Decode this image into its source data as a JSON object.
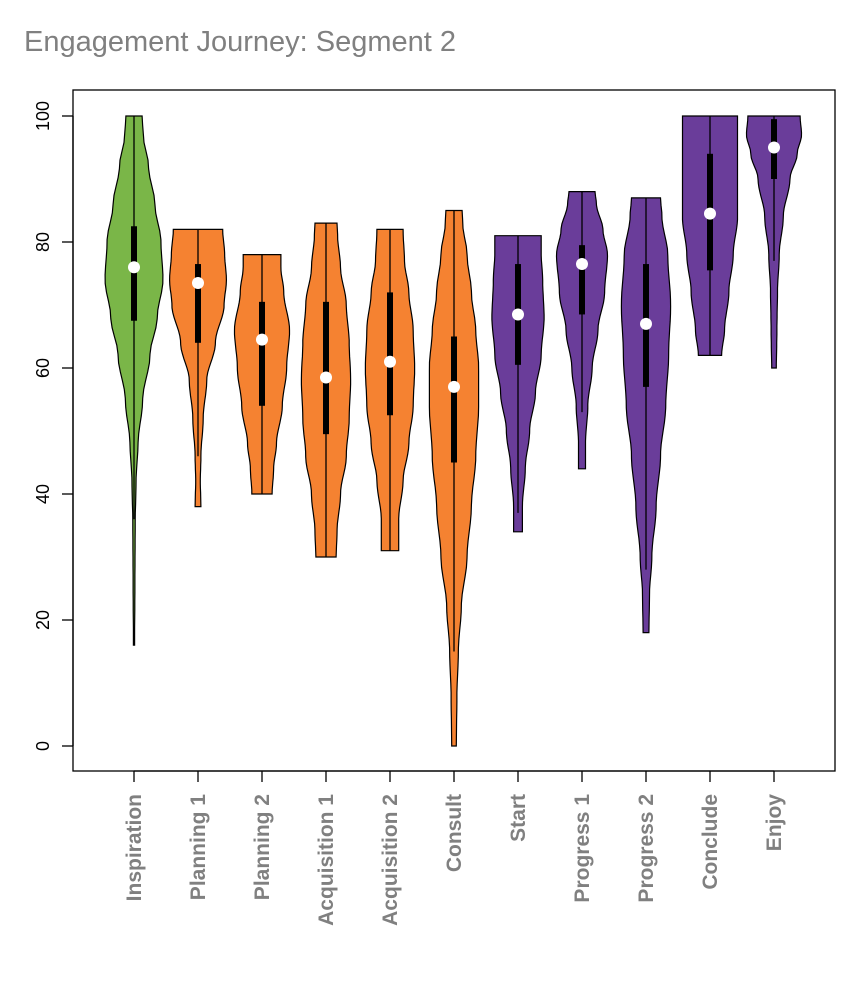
{
  "chart_data": {
    "type": "violin",
    "title": "Engagement Journey: Segment 2",
    "xlabel": "",
    "ylabel": "",
    "ylim": [
      -4,
      104
    ],
    "yticks": [
      0,
      20,
      40,
      60,
      80,
      100
    ],
    "colors": {
      "inspiration": "#7ab648",
      "planning": "#f58231",
      "experience": "#6a3d9a",
      "median": "#ffffff",
      "outline": "#000000"
    },
    "series": [
      {
        "name": "Inspiration",
        "group": "inspiration",
        "min": 16,
        "q1": 67.5,
        "median": 76,
        "q3": 82.5,
        "max": 100,
        "whisker_low": 36,
        "whisker_high": 100,
        "density": [
          [
            16,
            0.02
          ],
          [
            25,
            0.03
          ],
          [
            35,
            0.04
          ],
          [
            42,
            0.07
          ],
          [
            48,
            0.14
          ],
          [
            55,
            0.3
          ],
          [
            62,
            0.55
          ],
          [
            68,
            0.8
          ],
          [
            74,
            1.0
          ],
          [
            80,
            0.93
          ],
          [
            86,
            0.72
          ],
          [
            92,
            0.5
          ],
          [
            97,
            0.32
          ],
          [
            100,
            0.28
          ]
        ]
      },
      {
        "name": "Planning 1",
        "group": "planning",
        "min": 38,
        "q1": 64,
        "median": 73.5,
        "q3": 76.5,
        "max": 82,
        "whisker_low": 46,
        "whisker_high": 82,
        "density": [
          [
            38,
            0.1
          ],
          [
            42,
            0.08
          ],
          [
            46,
            0.1
          ],
          [
            52,
            0.18
          ],
          [
            58,
            0.3
          ],
          [
            64,
            0.6
          ],
          [
            70,
            0.9
          ],
          [
            74,
            0.98
          ],
          [
            78,
            0.92
          ],
          [
            82,
            0.85
          ]
        ]
      },
      {
        "name": "Planning 2",
        "group": "planning",
        "min": 40,
        "q1": 54,
        "median": 64.5,
        "q3": 70.5,
        "max": 78,
        "whisker_low": 40,
        "whisker_high": 78,
        "density": [
          [
            40,
            0.35
          ],
          [
            44,
            0.4
          ],
          [
            48,
            0.5
          ],
          [
            54,
            0.7
          ],
          [
            60,
            0.85
          ],
          [
            66,
            0.95
          ],
          [
            72,
            0.75
          ],
          [
            76,
            0.65
          ],
          [
            78,
            0.65
          ]
        ]
      },
      {
        "name": "Acquisition 1",
        "group": "planning",
        "min": 30,
        "q1": 49.5,
        "median": 58.5,
        "q3": 70.5,
        "max": 83,
        "whisker_low": 30,
        "whisker_high": 83,
        "density": [
          [
            30,
            0.35
          ],
          [
            34,
            0.38
          ],
          [
            40,
            0.5
          ],
          [
            46,
            0.7
          ],
          [
            52,
            0.8
          ],
          [
            58,
            0.85
          ],
          [
            64,
            0.8
          ],
          [
            70,
            0.7
          ],
          [
            76,
            0.5
          ],
          [
            81,
            0.4
          ],
          [
            83,
            0.38
          ]
        ]
      },
      {
        "name": "Acquisition 2",
        "group": "planning",
        "min": 31,
        "q1": 52.5,
        "median": 61,
        "q3": 72,
        "max": 82,
        "whisker_low": 31,
        "whisker_high": 82,
        "density": [
          [
            31,
            0.3
          ],
          [
            36,
            0.3
          ],
          [
            42,
            0.45
          ],
          [
            48,
            0.65
          ],
          [
            54,
            0.8
          ],
          [
            60,
            0.85
          ],
          [
            66,
            0.8
          ],
          [
            72,
            0.65
          ],
          [
            77,
            0.5
          ],
          [
            82,
            0.45
          ]
        ]
      },
      {
        "name": "Consult",
        "group": "planning",
        "min": 0,
        "q1": 45,
        "median": 57,
        "q3": 65,
        "max": 85,
        "whisker_low": 15,
        "whisker_high": 85,
        "density": [
          [
            0,
            0.08
          ],
          [
            8,
            0.1
          ],
          [
            15,
            0.15
          ],
          [
            22,
            0.25
          ],
          [
            30,
            0.45
          ],
          [
            38,
            0.6
          ],
          [
            46,
            0.75
          ],
          [
            54,
            0.85
          ],
          [
            60,
            0.85
          ],
          [
            66,
            0.75
          ],
          [
            72,
            0.6
          ],
          [
            78,
            0.45
          ],
          [
            83,
            0.3
          ],
          [
            85,
            0.28
          ]
        ]
      },
      {
        "name": "Start",
        "group": "experience",
        "min": 34,
        "q1": 60.5,
        "median": 68.5,
        "q3": 76.5,
        "max": 81,
        "whisker_low": 37,
        "whisker_high": 81,
        "density": [
          [
            34,
            0.15
          ],
          [
            38,
            0.15
          ],
          [
            44,
            0.25
          ],
          [
            50,
            0.4
          ],
          [
            56,
            0.6
          ],
          [
            62,
            0.8
          ],
          [
            68,
            0.9
          ],
          [
            74,
            0.85
          ],
          [
            78,
            0.8
          ],
          [
            81,
            0.8
          ]
        ]
      },
      {
        "name": "Progress 1",
        "group": "experience",
        "min": 44,
        "q1": 68.5,
        "median": 76.5,
        "q3": 79.5,
        "max": 88,
        "whisker_low": 53,
        "whisker_high": 88,
        "density": [
          [
            44,
            0.12
          ],
          [
            48,
            0.12
          ],
          [
            54,
            0.2
          ],
          [
            60,
            0.35
          ],
          [
            66,
            0.55
          ],
          [
            72,
            0.78
          ],
          [
            78,
            0.88
          ],
          [
            82,
            0.72
          ],
          [
            86,
            0.5
          ],
          [
            88,
            0.45
          ]
        ]
      },
      {
        "name": "Progress 2",
        "group": "experience",
        "min": 18,
        "q1": 57,
        "median": 67,
        "q3": 76.5,
        "max": 87,
        "whisker_low": 28,
        "whisker_high": 87,
        "density": [
          [
            18,
            0.1
          ],
          [
            24,
            0.12
          ],
          [
            30,
            0.2
          ],
          [
            38,
            0.35
          ],
          [
            46,
            0.5
          ],
          [
            54,
            0.68
          ],
          [
            62,
            0.78
          ],
          [
            70,
            0.85
          ],
          [
            78,
            0.75
          ],
          [
            84,
            0.55
          ],
          [
            87,
            0.5
          ]
        ]
      },
      {
        "name": "Conclude",
        "group": "experience",
        "min": 62,
        "q1": 75.5,
        "median": 84.5,
        "q3": 94,
        "max": 100,
        "whisker_low": 62,
        "whisker_high": 100,
        "density": [
          [
            62,
            0.4
          ],
          [
            66,
            0.5
          ],
          [
            72,
            0.65
          ],
          [
            78,
            0.8
          ],
          [
            84,
            0.95
          ],
          [
            90,
            0.95
          ],
          [
            96,
            0.95
          ],
          [
            100,
            0.95
          ]
        ]
      },
      {
        "name": "Enjoy",
        "group": "experience",
        "min": 60,
        "q1": 90,
        "median": 95,
        "q3": 99.5,
        "max": 100,
        "whisker_low": 77,
        "whisker_high": 100,
        "density": [
          [
            60,
            0.08
          ],
          [
            66,
            0.1
          ],
          [
            72,
            0.12
          ],
          [
            78,
            0.18
          ],
          [
            84,
            0.32
          ],
          [
            90,
            0.55
          ],
          [
            94,
            0.8
          ],
          [
            97,
            0.95
          ],
          [
            100,
            0.9
          ]
        ]
      }
    ]
  }
}
